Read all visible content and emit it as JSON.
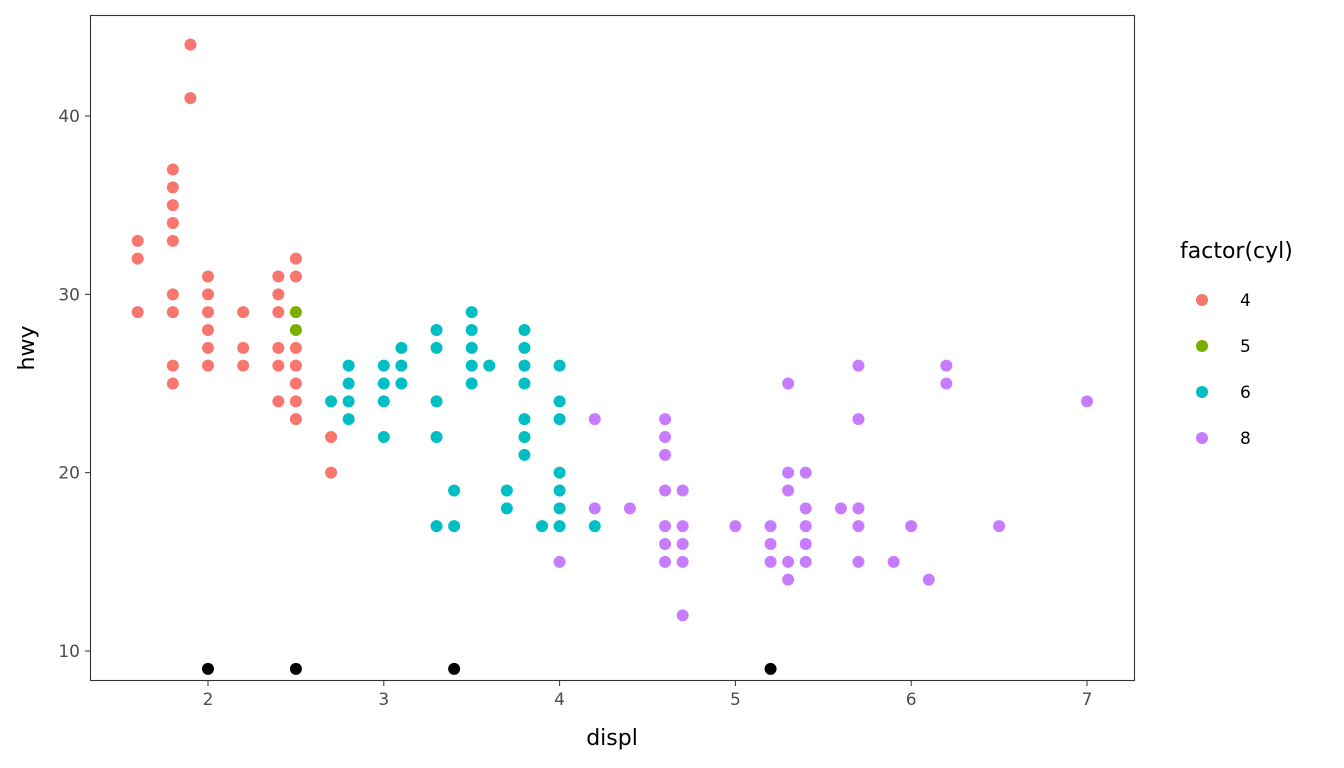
{
  "chart_data": {
    "type": "scatter",
    "xlabel": "displ",
    "ylabel": "hwy",
    "xlim": [
      1.33,
      7.27
    ],
    "ylim": [
      8.35,
      45.65
    ],
    "xticks": [
      2,
      3,
      4,
      5,
      6,
      7
    ],
    "yticks": [
      10,
      20,
      30,
      40
    ],
    "grid": false,
    "legend": {
      "title": "factor(cyl)",
      "position": "right"
    },
    "series": [
      {
        "name": "4",
        "color": "#F8766D",
        "points": [
          [
            1.6,
            33
          ],
          [
            1.6,
            32
          ],
          [
            1.6,
            29
          ],
          [
            1.8,
            37
          ],
          [
            1.8,
            36
          ],
          [
            1.8,
            35
          ],
          [
            1.8,
            34
          ],
          [
            1.8,
            33
          ],
          [
            1.8,
            30
          ],
          [
            1.8,
            29
          ],
          [
            1.8,
            26
          ],
          [
            1.8,
            25
          ],
          [
            1.9,
            44
          ],
          [
            1.9,
            41
          ],
          [
            2.0,
            31
          ],
          [
            2.0,
            30
          ],
          [
            2.0,
            29
          ],
          [
            2.0,
            28
          ],
          [
            2.0,
            27
          ],
          [
            2.0,
            26
          ],
          [
            2.2,
            29
          ],
          [
            2.2,
            27
          ],
          [
            2.2,
            26
          ],
          [
            2.4,
            31
          ],
          [
            2.4,
            30
          ],
          [
            2.4,
            29
          ],
          [
            2.4,
            27
          ],
          [
            2.4,
            26
          ],
          [
            2.4,
            24
          ],
          [
            2.5,
            32
          ],
          [
            2.5,
            31
          ],
          [
            2.5,
            27
          ],
          [
            2.5,
            26
          ],
          [
            2.5,
            25
          ],
          [
            2.5,
            24
          ],
          [
            2.5,
            23
          ],
          [
            2.7,
            22
          ],
          [
            2.7,
            20
          ]
        ]
      },
      {
        "name": "5",
        "color": "#7CAE00",
        "points": [
          [
            2.5,
            29
          ],
          [
            2.5,
            28
          ]
        ]
      },
      {
        "name": "6",
        "color": "#00BFC4",
        "points": [
          [
            2.7,
            24
          ],
          [
            2.8,
            26
          ],
          [
            2.8,
            25
          ],
          [
            2.8,
            24
          ],
          [
            2.8,
            23
          ],
          [
            3.0,
            26
          ],
          [
            3.0,
            25
          ],
          [
            3.0,
            24
          ],
          [
            3.0,
            22
          ],
          [
            3.1,
            27
          ],
          [
            3.1,
            26
          ],
          [
            3.1,
            25
          ],
          [
            3.3,
            28
          ],
          [
            3.3,
            27
          ],
          [
            3.3,
            24
          ],
          [
            3.3,
            22
          ],
          [
            3.3,
            17
          ],
          [
            3.4,
            19
          ],
          [
            3.4,
            17
          ],
          [
            3.5,
            29
          ],
          [
            3.5,
            28
          ],
          [
            3.5,
            27
          ],
          [
            3.5,
            26
          ],
          [
            3.5,
            25
          ],
          [
            3.6,
            26
          ],
          [
            3.7,
            19
          ],
          [
            3.7,
            18
          ],
          [
            3.8,
            28
          ],
          [
            3.8,
            27
          ],
          [
            3.8,
            26
          ],
          [
            3.8,
            25
          ],
          [
            3.8,
            23
          ],
          [
            3.8,
            22
          ],
          [
            3.8,
            21
          ],
          [
            3.9,
            17
          ],
          [
            4.0,
            26
          ],
          [
            4.0,
            24
          ],
          [
            4.0,
            23
          ],
          [
            4.0,
            20
          ],
          [
            4.0,
            19
          ],
          [
            4.0,
            18
          ],
          [
            4.0,
            17
          ],
          [
            4.2,
            17
          ]
        ]
      },
      {
        "name": "8",
        "color": "#C77CFF",
        "points": [
          [
            4.0,
            15
          ],
          [
            4.2,
            23
          ],
          [
            4.2,
            18
          ],
          [
            4.4,
            18
          ],
          [
            4.6,
            23
          ],
          [
            4.6,
            22
          ],
          [
            4.6,
            21
          ],
          [
            4.6,
            19
          ],
          [
            4.6,
            17
          ],
          [
            4.6,
            16
          ],
          [
            4.6,
            15
          ],
          [
            4.7,
            19
          ],
          [
            4.7,
            17
          ],
          [
            4.7,
            16
          ],
          [
            4.7,
            15
          ],
          [
            4.7,
            12
          ],
          [
            5.0,
            17
          ],
          [
            5.2,
            17
          ],
          [
            5.2,
            16
          ],
          [
            5.2,
            15
          ],
          [
            5.3,
            25
          ],
          [
            5.3,
            20
          ],
          [
            5.3,
            19
          ],
          [
            5.3,
            15
          ],
          [
            5.3,
            14
          ],
          [
            5.4,
            20
          ],
          [
            5.4,
            18
          ],
          [
            5.4,
            17
          ],
          [
            5.4,
            16
          ],
          [
            5.4,
            15
          ],
          [
            5.6,
            18
          ],
          [
            5.7,
            26
          ],
          [
            5.7,
            23
          ],
          [
            5.7,
            18
          ],
          [
            5.7,
            17
          ],
          [
            5.7,
            15
          ],
          [
            5.9,
            15
          ],
          [
            6.0,
            17
          ],
          [
            6.1,
            14
          ],
          [
            6.2,
            26
          ],
          [
            6.2,
            25
          ],
          [
            6.5,
            17
          ],
          [
            7.0,
            24
          ]
        ]
      }
    ],
    "extra_points": {
      "color": "#000000",
      "points": [
        [
          2.0,
          9
        ],
        [
          2.5,
          9
        ],
        [
          3.4,
          9
        ],
        [
          5.2,
          9
        ]
      ]
    }
  }
}
